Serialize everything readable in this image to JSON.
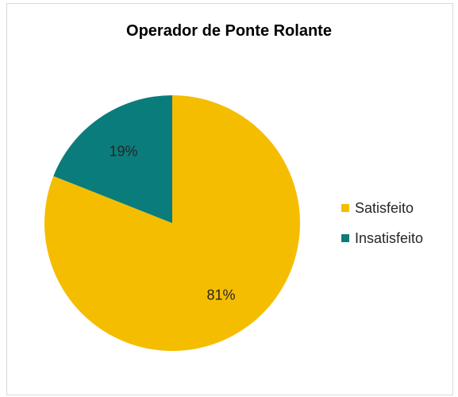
{
  "chart_data": {
    "type": "pie",
    "title": "Operador de Ponte Rolante",
    "categories": [
      "Satisfeito",
      "Insatisfeito"
    ],
    "values": [
      81,
      19
    ],
    "labels": [
      "81%",
      "19%"
    ],
    "colors": [
      "#F5BD00",
      "#0B7C7C"
    ],
    "legend_position": "right"
  }
}
